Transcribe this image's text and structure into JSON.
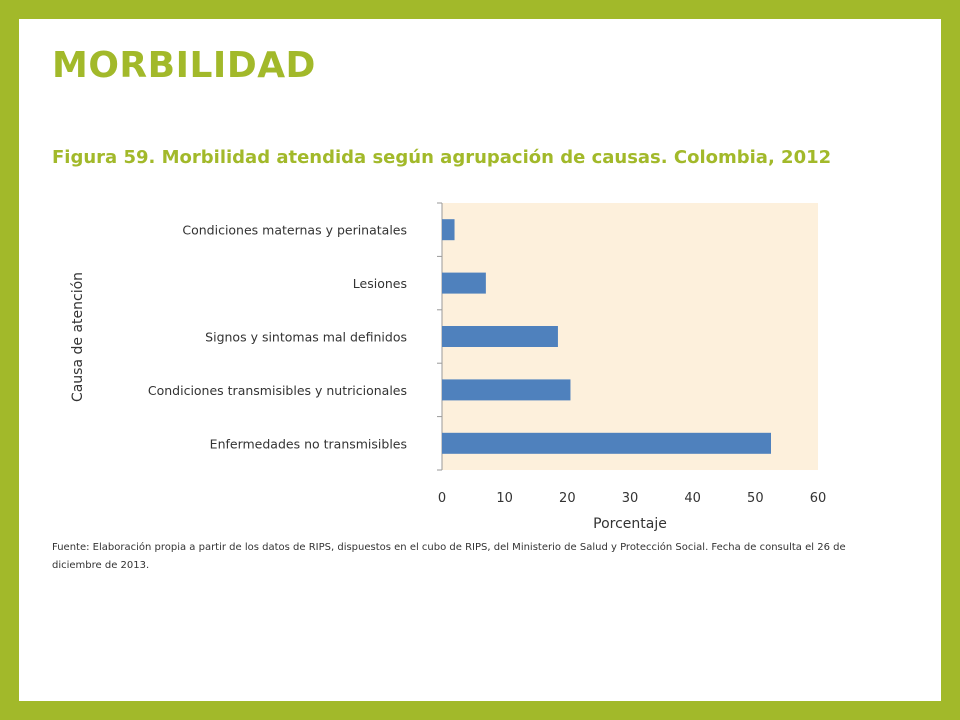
{
  "slide": {
    "title": "MORBILIDAD",
    "subtitle": "Figura 59. Morbilidad atendida según agrupación de causas. Colombia, 2012",
    "source": "Fuente: Elaboración propia a partir de los datos de RIPS, dispuestos en el cubo de RIPS, del Ministerio de Salud y Protección Social. Fecha de consulta el 26 de diciembre de 2013."
  },
  "colors": {
    "accent": "#a2b92a",
    "plot_bg": "#fdf0dc",
    "bar": "#4f81bd",
    "axis": "#9a9a9a"
  },
  "chart_data": {
    "type": "bar",
    "orientation": "horizontal",
    "categories": [
      "Condiciones maternas y perinatales",
      "Lesiones",
      "Signos y sintomas mal definidos",
      "Condiciones transmisibles y nutricionales",
      "Enfermedades no transmisibles"
    ],
    "values": [
      2,
      7,
      18.5,
      20.5,
      52.5
    ],
    "xlabel": "Porcentaje",
    "ylabel": "Causa de atención",
    "xlim": [
      0,
      60
    ],
    "xticks": [
      0,
      10,
      20,
      30,
      40,
      50,
      60
    ],
    "grid": false
  }
}
